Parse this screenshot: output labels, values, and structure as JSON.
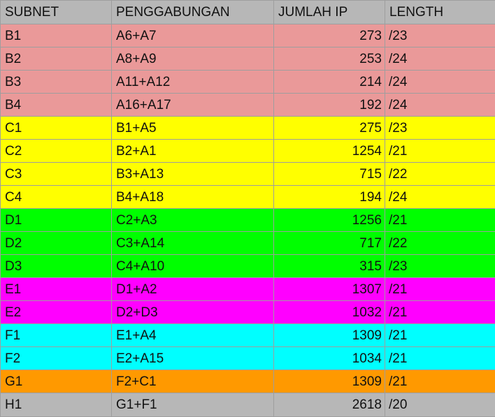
{
  "table": {
    "headers": [
      "SUBNET",
      "PENGGABUNGAN",
      "JUMLAH IP",
      "LENGTH"
    ],
    "rows": [
      {
        "subnet": "B1",
        "penggabungan": "A6+A7",
        "jumlah_ip": "273",
        "length": "/23",
        "color": "#ea9999"
      },
      {
        "subnet": "B2",
        "penggabungan": "A8+A9",
        "jumlah_ip": "253",
        "length": "/24",
        "color": "#ea9999"
      },
      {
        "subnet": "B3",
        "penggabungan": "A11+A12",
        "jumlah_ip": "214",
        "length": "/24",
        "color": "#ea9999"
      },
      {
        "subnet": "B4",
        "penggabungan": "A16+A17",
        "jumlah_ip": "192",
        "length": "/24",
        "color": "#ea9999"
      },
      {
        "subnet": "C1",
        "penggabungan": "B1+A5",
        "jumlah_ip": "275",
        "length": "/23",
        "color": "#ffff00"
      },
      {
        "subnet": "C2",
        "penggabungan": "B2+A1",
        "jumlah_ip": "1254",
        "length": "/21",
        "color": "#ffff00"
      },
      {
        "subnet": "C3",
        "penggabungan": "B3+A13",
        "jumlah_ip": "715",
        "length": "/22",
        "color": "#ffff00"
      },
      {
        "subnet": "C4",
        "penggabungan": "B4+A18",
        "jumlah_ip": "194",
        "length": "/24",
        "color": "#ffff00"
      },
      {
        "subnet": "D1",
        "penggabungan": "C2+A3",
        "jumlah_ip": "1256",
        "length": "/21",
        "color": "#00ff00"
      },
      {
        "subnet": "D2",
        "penggabungan": "C3+A14",
        "jumlah_ip": "717",
        "length": "/22",
        "color": "#00ff00"
      },
      {
        "subnet": "D3",
        "penggabungan": "C4+A10",
        "jumlah_ip": "315",
        "length": "/23",
        "color": "#00ff00"
      },
      {
        "subnet": "E1",
        "penggabungan": "D1+A2",
        "jumlah_ip": "1307",
        "length": "/21",
        "color": "#ff00ff"
      },
      {
        "subnet": "E2",
        "penggabungan": "D2+D3",
        "jumlah_ip": "1032",
        "length": "/21",
        "color": "#ff00ff"
      },
      {
        "subnet": "F1",
        "penggabungan": "E1+A4",
        "jumlah_ip": "1309",
        "length": "/21",
        "color": "#00ffff"
      },
      {
        "subnet": "F2",
        "penggabungan": "E2+A15",
        "jumlah_ip": "1034",
        "length": "/21",
        "color": "#00ffff"
      },
      {
        "subnet": "G1",
        "penggabungan": "F2+C1",
        "jumlah_ip": "1309",
        "length": "/21",
        "color": "#ff9900"
      },
      {
        "subnet": "H1",
        "penggabungan": "G1+F1",
        "jumlah_ip": "2618",
        "length": "/20",
        "color": "#b7b7b7"
      }
    ]
  }
}
